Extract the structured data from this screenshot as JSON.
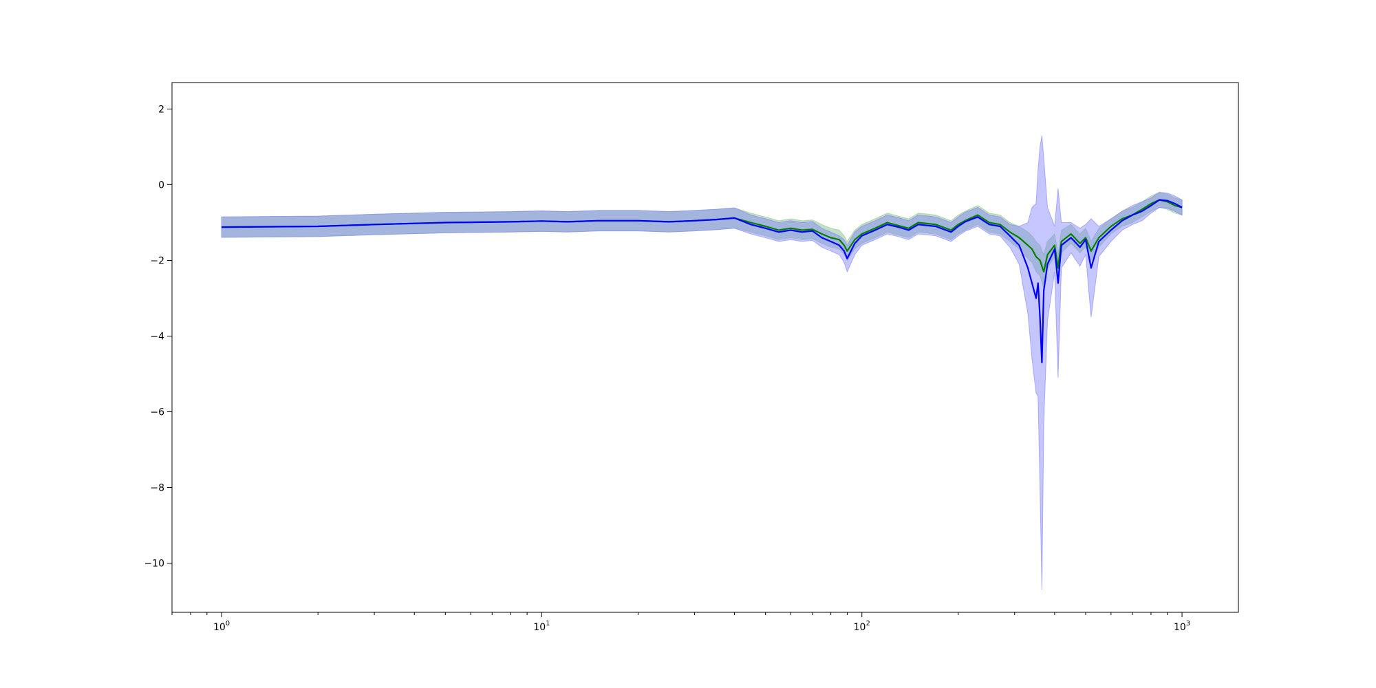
{
  "chart_data": {
    "type": "line",
    "title": "",
    "xlabel": "",
    "ylabel": "",
    "xscale": "log",
    "xlim": [
      0.7,
      1500
    ],
    "ylim": [
      -11.3,
      2.7
    ],
    "grid": false,
    "legend": "none",
    "x_ticks": [
      {
        "value": 1,
        "base": "10",
        "exp": "0"
      },
      {
        "value": 10,
        "base": "10",
        "exp": "1"
      },
      {
        "value": 100,
        "base": "10",
        "exp": "2"
      },
      {
        "value": 1000,
        "base": "10",
        "exp": "3"
      }
    ],
    "y_ticks": [
      {
        "value": 2,
        "label": "2"
      },
      {
        "value": 0,
        "label": "0"
      },
      {
        "value": -2,
        "label": "−2"
      },
      {
        "value": -4,
        "label": "−4"
      },
      {
        "value": -6,
        "label": "−6"
      },
      {
        "value": -8,
        "label": "−8"
      },
      {
        "value": -10,
        "label": "−10"
      }
    ],
    "series": [
      {
        "color": "#008000",
        "band_color": "#90c890",
        "x": [
          1,
          2,
          3,
          5,
          8,
          10,
          12,
          15,
          20,
          25,
          30,
          35,
          40,
          45,
          50,
          55,
          60,
          65,
          70,
          75,
          80,
          85,
          88,
          90,
          95,
          100,
          110,
          120,
          130,
          140,
          150,
          170,
          190,
          200,
          210,
          230,
          250,
          270,
          290,
          310,
          330,
          340,
          350,
          360,
          370,
          380,
          400,
          410,
          420,
          450,
          480,
          500,
          520,
          550,
          600,
          650,
          700,
          750,
          800,
          850,
          900,
          950,
          1000
        ],
        "y": [
          -1.12,
          -1.1,
          -1.05,
          -1.0,
          -0.98,
          -0.96,
          -0.98,
          -0.95,
          -0.95,
          -0.98,
          -0.95,
          -0.92,
          -0.88,
          -1.0,
          -1.1,
          -1.2,
          -1.15,
          -1.2,
          -1.18,
          -1.3,
          -1.4,
          -1.45,
          -1.6,
          -1.75,
          -1.45,
          -1.3,
          -1.15,
          -1.0,
          -1.08,
          -1.15,
          -1.0,
          -1.05,
          -1.2,
          -1.05,
          -0.95,
          -0.8,
          -1.0,
          -1.05,
          -1.25,
          -1.4,
          -1.6,
          -1.7,
          -1.9,
          -2.0,
          -2.3,
          -1.85,
          -1.6,
          -2.2,
          -1.5,
          -1.3,
          -1.55,
          -1.4,
          -1.75,
          -1.4,
          -1.1,
          -0.9,
          -0.8,
          -0.65,
          -0.5,
          -0.4,
          -0.45,
          -0.55,
          -0.6
        ],
        "band": [
          0.27,
          0.27,
          0.27,
          0.27,
          0.27,
          0.27,
          0.27,
          0.27,
          0.27,
          0.27,
          0.27,
          0.27,
          0.27,
          0.25,
          0.25,
          0.25,
          0.25,
          0.25,
          0.25,
          0.25,
          0.25,
          0.25,
          0.25,
          0.25,
          0.25,
          0.25,
          0.25,
          0.25,
          0.25,
          0.25,
          0.25,
          0.25,
          0.25,
          0.25,
          0.25,
          0.25,
          0.25,
          0.25,
          0.25,
          0.3,
          0.35,
          0.35,
          0.4,
          0.4,
          0.45,
          0.35,
          0.3,
          0.35,
          0.3,
          0.25,
          0.25,
          0.25,
          0.25,
          0.25,
          0.2,
          0.2,
          0.2,
          0.2,
          0.2,
          0.2,
          0.2,
          0.2,
          0.2
        ]
      },
      {
        "color": "#0000ff",
        "band_color": "#8080ff",
        "x": [
          1,
          2,
          3,
          5,
          8,
          10,
          12,
          15,
          20,
          25,
          30,
          35,
          40,
          45,
          50,
          55,
          60,
          65,
          70,
          75,
          80,
          85,
          88,
          90,
          95,
          100,
          110,
          120,
          130,
          140,
          150,
          170,
          190,
          200,
          210,
          230,
          250,
          270,
          290,
          310,
          330,
          340,
          350,
          355,
          360,
          365,
          370,
          380,
          400,
          410,
          420,
          450,
          480,
          500,
          520,
          550,
          600,
          650,
          700,
          750,
          800,
          850,
          900,
          950,
          1000
        ],
        "y": [
          -1.12,
          -1.1,
          -1.05,
          -1.0,
          -0.98,
          -0.96,
          -0.98,
          -0.95,
          -0.95,
          -0.98,
          -0.95,
          -0.92,
          -0.88,
          -1.05,
          -1.15,
          -1.25,
          -1.2,
          -1.25,
          -1.22,
          -1.4,
          -1.5,
          -1.6,
          -1.75,
          -1.95,
          -1.55,
          -1.35,
          -1.2,
          -1.05,
          -1.12,
          -1.2,
          -1.05,
          -1.1,
          -1.25,
          -1.1,
          -0.98,
          -0.85,
          -1.05,
          -1.1,
          -1.35,
          -1.6,
          -2.2,
          -2.6,
          -3.0,
          -2.6,
          -3.5,
          -4.7,
          -2.8,
          -2.1,
          -1.7,
          -2.6,
          -1.6,
          -1.4,
          -1.65,
          -1.45,
          -2.2,
          -1.5,
          -1.2,
          -0.95,
          -0.8,
          -0.7,
          -0.55,
          -0.4,
          -0.42,
          -0.5,
          -0.6
        ],
        "band": [
          0.27,
          0.27,
          0.27,
          0.27,
          0.27,
          0.27,
          0.27,
          0.27,
          0.27,
          0.27,
          0.27,
          0.27,
          0.27,
          0.25,
          0.25,
          0.25,
          0.25,
          0.25,
          0.25,
          0.25,
          0.25,
          0.25,
          0.3,
          0.35,
          0.3,
          0.25,
          0.25,
          0.25,
          0.25,
          0.25,
          0.25,
          0.25,
          0.25,
          0.25,
          0.25,
          0.25,
          0.25,
          0.25,
          0.3,
          0.5,
          1.2,
          2.0,
          2.5,
          3.0,
          4.5,
          6.0,
          3.5,
          1.5,
          0.6,
          2.5,
          0.6,
          0.4,
          0.5,
          0.4,
          1.3,
          0.4,
          0.3,
          0.25,
          0.25,
          0.25,
          0.2,
          0.2,
          0.2,
          0.2,
          0.2
        ]
      }
    ]
  }
}
